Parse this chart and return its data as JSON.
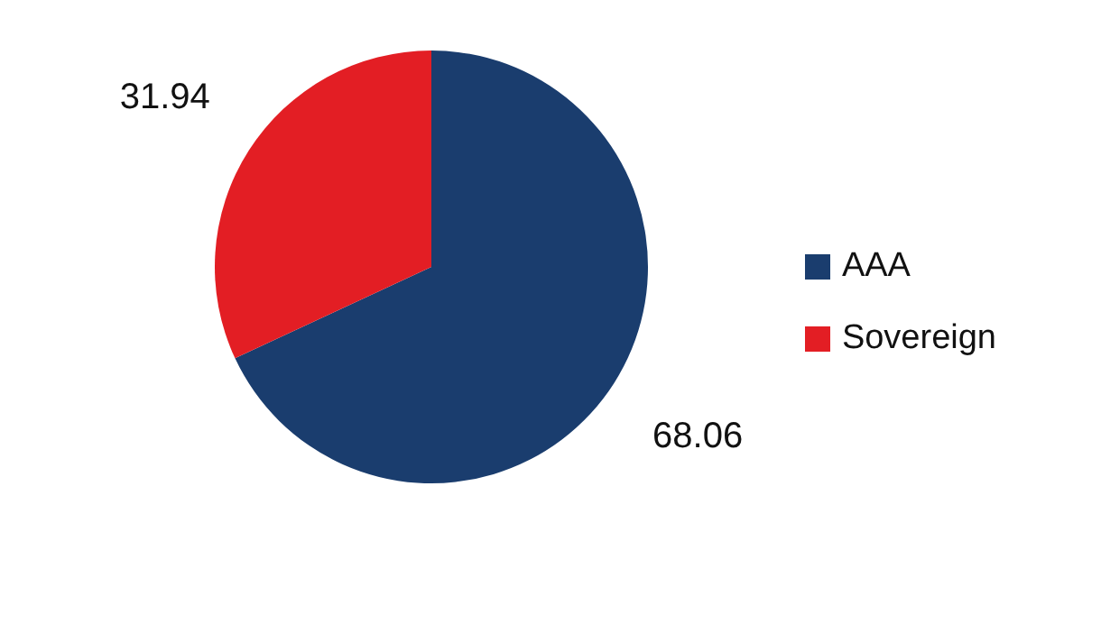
{
  "chart_data": {
    "type": "pie",
    "categories": [
      "AAA",
      "Sovereign"
    ],
    "values": [
      68.06,
      31.94
    ],
    "colors": [
      "#1a3d6e",
      "#e31e24"
    ],
    "data_labels": true,
    "legend": "right"
  }
}
